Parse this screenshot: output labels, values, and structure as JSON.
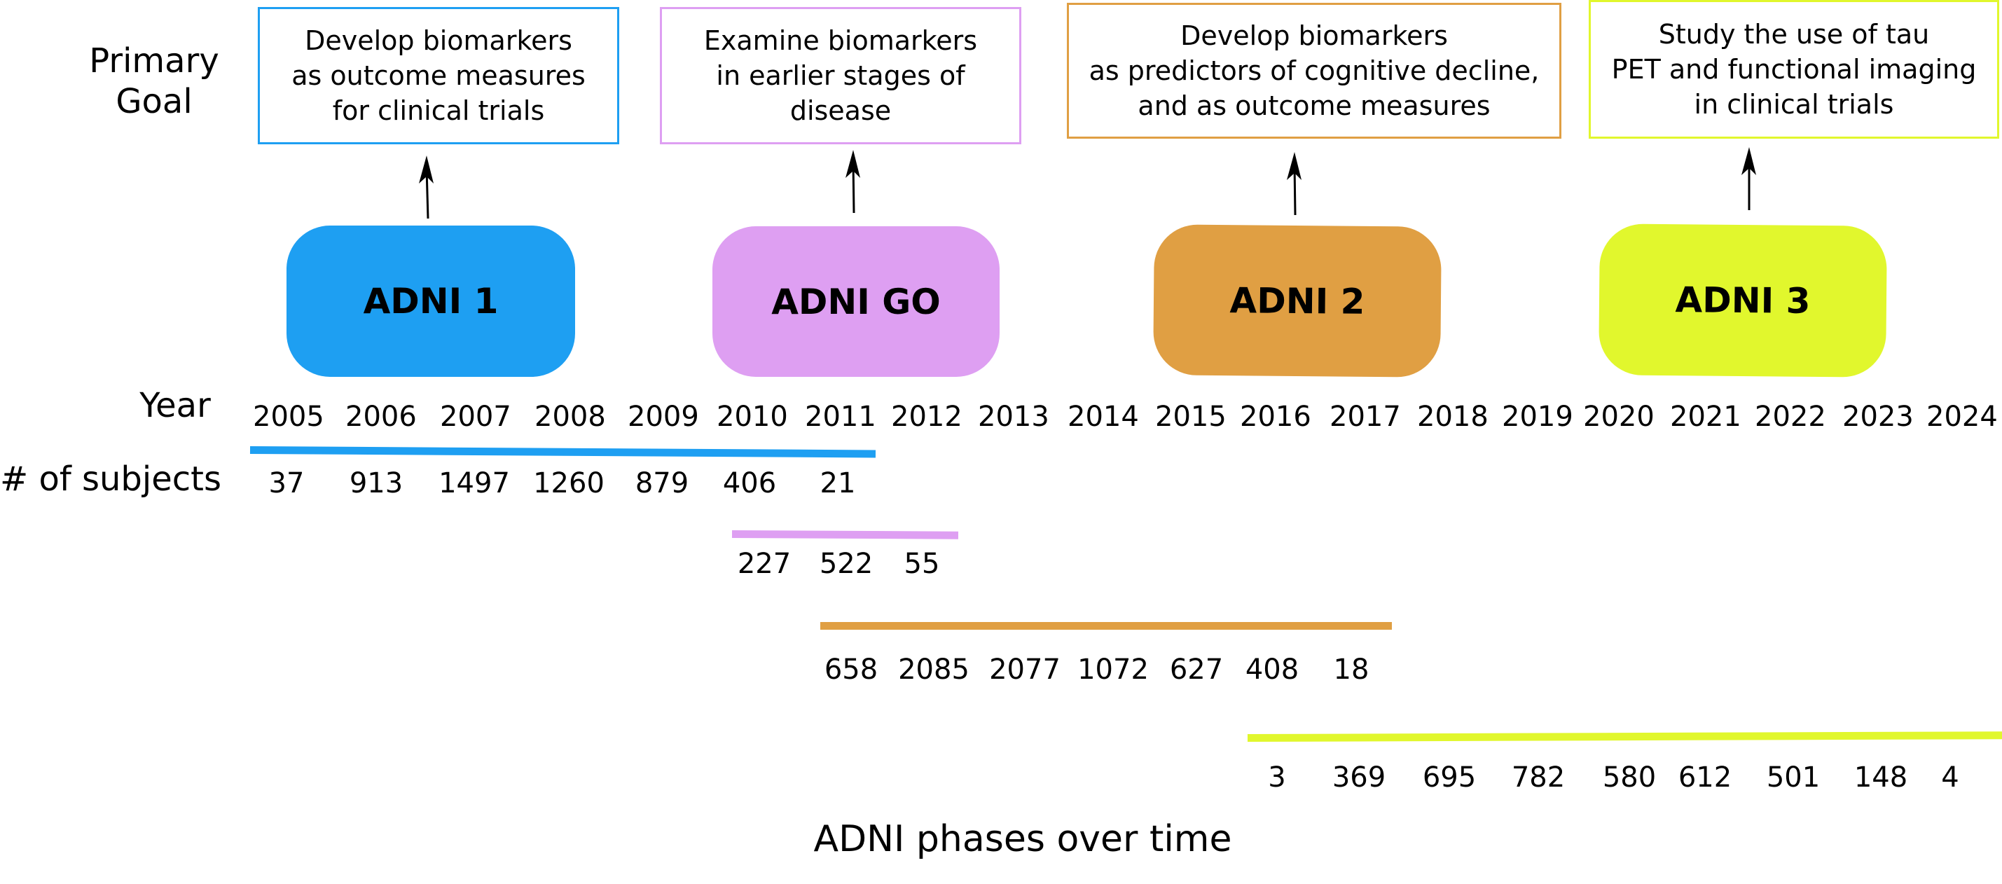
{
  "labels": {
    "primary_goal": "Primary\nGoal",
    "year": "Year",
    "subjects": "# of subjects",
    "caption": "ADNI phases over time"
  },
  "years": [
    "2005",
    "2006",
    "2007",
    "2008",
    "2009",
    "2010",
    "2011",
    "2012",
    "2013",
    "2014",
    "2015",
    "2016",
    "2017",
    "2018",
    "2019",
    "2020",
    "2021",
    "2022",
    "2023",
    "2024"
  ],
  "phases": [
    {
      "name": "ADNI 1",
      "color": "#1E9FF2",
      "goal": "Develop biomarkers\nas outcome measures\nfor clinical trials",
      "subjects": [
        "37",
        "913",
        "1497",
        "1260",
        "879",
        "406",
        "21"
      ]
    },
    {
      "name": "ADNI GO",
      "color": "#DE9FF2",
      "goal": "Examine biomarkers\nin earlier stages of\ndisease",
      "subjects": [
        "227",
        "522",
        "55"
      ]
    },
    {
      "name": "ADNI 2",
      "color": "#E09F43",
      "goal": "Develop biomarkers\nas predictors of cognitive decline,\nand as outcome measures",
      "subjects": [
        "658",
        "2085",
        "2077",
        "1072",
        "627",
        "408",
        "18"
      ]
    },
    {
      "name": "ADNI 3",
      "color": "#E1F72D",
      "goal": "Study the use of tau\nPET and functional imaging\nin clinical trials",
      "subjects": [
        "3",
        "369",
        "695",
        "782",
        "580",
        "612",
        "501",
        "148",
        "4"
      ]
    }
  ]
}
